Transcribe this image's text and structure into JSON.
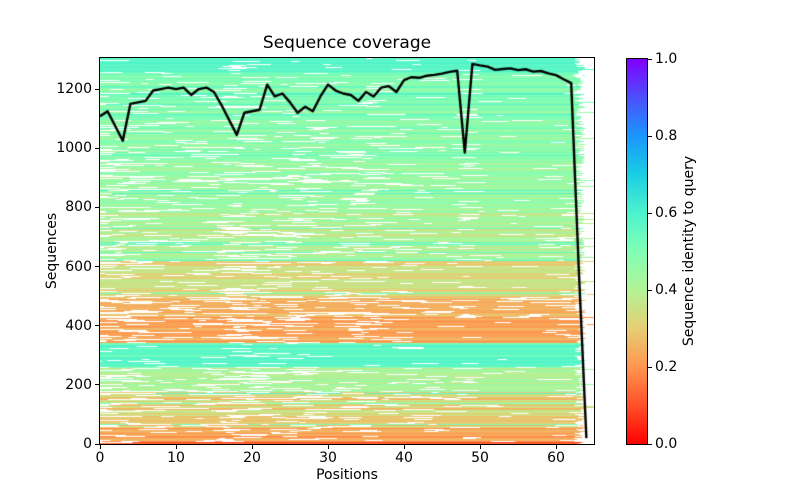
{
  "chart_data": {
    "type": "heatmap+line",
    "title": "Sequence coverage",
    "xlabel": "Positions",
    "ylabel": "Sequences",
    "xlim": [
      0,
      65
    ],
    "ylim": [
      0,
      1305
    ],
    "grid": false,
    "x_ticks": [
      {
        "value": 0,
        "label": "0"
      },
      {
        "value": 10,
        "label": "10"
      },
      {
        "value": 20,
        "label": "20"
      },
      {
        "value": 30,
        "label": "30"
      },
      {
        "value": 40,
        "label": "40"
      },
      {
        "value": 50,
        "label": "50"
      },
      {
        "value": 60,
        "label": "60"
      }
    ],
    "y_ticks": [
      {
        "value": 0,
        "label": "0"
      },
      {
        "value": 200,
        "label": "200"
      },
      {
        "value": 400,
        "label": "400"
      },
      {
        "value": 600,
        "label": "600"
      },
      {
        "value": 800,
        "label": "800"
      },
      {
        "value": 1000,
        "label": "1000"
      },
      {
        "value": 1200,
        "label": "1200"
      }
    ],
    "colorbar": {
      "label": "Sequence identity to query",
      "lim": [
        0.0,
        1.0
      ],
      "ticks": [
        {
          "value": 0.0,
          "label": "0.0"
        },
        {
          "value": 0.2,
          "label": "0.2"
        },
        {
          "value": 0.4,
          "label": "0.4"
        },
        {
          "value": 0.6,
          "label": "0.6"
        },
        {
          "value": 0.8,
          "label": "0.8"
        },
        {
          "value": 1.0,
          "label": "1.0"
        }
      ],
      "cmap_name": "rainbow_r",
      "cmap_stops": [
        {
          "v": 0.0,
          "color": "#ff0000"
        },
        {
          "v": 0.1,
          "color": "#ff4f28"
        },
        {
          "v": 0.2,
          "color": "#ff964f"
        },
        {
          "v": 0.3,
          "color": "#e6ce74"
        },
        {
          "v": 0.4,
          "color": "#b3f396"
        },
        {
          "v": 0.5,
          "color": "#80ffb4"
        },
        {
          "v": 0.6,
          "color": "#4df3ce"
        },
        {
          "v": 0.7,
          "color": "#1acee3"
        },
        {
          "v": 0.8,
          "color": "#1a96fc"
        },
        {
          "v": 0.9,
          "color": "#4d4ffc"
        },
        {
          "v": 1.0,
          "color": "#8000ff"
        }
      ]
    },
    "line": {
      "name": "coverage",
      "color": "#000000",
      "width": 2.4,
      "x": [
        0,
        1,
        2,
        3,
        4,
        5,
        6,
        7,
        8,
        9,
        10,
        11,
        12,
        13,
        14,
        15,
        16,
        17,
        18,
        19,
        20,
        21,
        22,
        23,
        24,
        25,
        26,
        27,
        28,
        29,
        30,
        31,
        32,
        33,
        34,
        35,
        36,
        37,
        38,
        39,
        40,
        41,
        42,
        43,
        44,
        45,
        46,
        47,
        48,
        49,
        50,
        51,
        52,
        53,
        54,
        55,
        56,
        57,
        58,
        59,
        60,
        61,
        62,
        63,
        64
      ],
      "y": [
        1108,
        1125,
        1075,
        1025,
        1150,
        1155,
        1160,
        1195,
        1200,
        1205,
        1200,
        1205,
        1180,
        1200,
        1205,
        1190,
        1145,
        1095,
        1045,
        1120,
        1125,
        1130,
        1215,
        1175,
        1185,
        1155,
        1120,
        1140,
        1125,
        1175,
        1215,
        1195,
        1185,
        1180,
        1160,
        1190,
        1175,
        1205,
        1210,
        1190,
        1230,
        1240,
        1238,
        1245,
        1248,
        1252,
        1258,
        1262,
        985,
        1285,
        1280,
        1276,
        1265,
        1268,
        1270,
        1264,
        1267,
        1259,
        1261,
        1253,
        1247,
        1233,
        1220,
        590,
        20
      ]
    },
    "heatmap": {
      "description": "MSA rows (sequences) colored by identity to query; white = position not covered by that sequence; most sequences end near position 63, only ~20 span to position 64",
      "n_sequences": 1305,
      "n_positions": 65,
      "seed": 3,
      "full_row_fraction": 0.06,
      "row_end_position": {
        "min": 62.4,
        "max": 63.9
      },
      "identity_bands": [
        {
          "from": 1258,
          "to": 1306,
          "identity": 0.57,
          "jitter": 0.03,
          "gap": 0.4,
          "stripe": 0.0
        },
        {
          "from": 1100,
          "to": 1258,
          "identity": 0.5,
          "jitter": 0.05,
          "gap": 0.8,
          "stripe": 0.1
        },
        {
          "from": 950,
          "to": 1100,
          "identity": 0.47,
          "jitter": 0.05,
          "gap": 1.0,
          "stripe": 0.08
        },
        {
          "from": 780,
          "to": 950,
          "identity": 0.44,
          "jitter": 0.05,
          "gap": 1.3,
          "stripe": 0.07
        },
        {
          "from": 620,
          "to": 780,
          "identity": 0.4,
          "jitter": 0.06,
          "gap": 1.6,
          "stripe": 0.08
        },
        {
          "from": 500,
          "to": 620,
          "identity": 0.33,
          "jitter": 0.05,
          "gap": 1.4,
          "stripe": 0.05
        },
        {
          "from": 430,
          "to": 500,
          "identity": 0.25,
          "jitter": 0.04,
          "gap": 2.2,
          "stripe": 0.02
        },
        {
          "from": 340,
          "to": 430,
          "identity": 0.23,
          "jitter": 0.04,
          "gap": 1.6,
          "stripe": 0.03
        },
        {
          "from": 262,
          "to": 340,
          "identity": 0.56,
          "jitter": 0.04,
          "gap": 0.5,
          "stripe": 0.0
        },
        {
          "from": 175,
          "to": 262,
          "identity": 0.43,
          "jitter": 0.07,
          "gap": 1.4,
          "stripe": 0.06
        },
        {
          "from": 55,
          "to": 175,
          "identity": 0.31,
          "jitter": 0.08,
          "gap": 1.5,
          "stripe": 0.05
        },
        {
          "from": 8,
          "to": 55,
          "identity": 0.22,
          "jitter": 0.05,
          "gap": 1.2,
          "stripe": 0.02
        },
        {
          "from": 0,
          "to": 8,
          "identity": 0.12,
          "jitter": 0.04,
          "gap": 0.5,
          "stripe": 0.0
        }
      ]
    }
  }
}
